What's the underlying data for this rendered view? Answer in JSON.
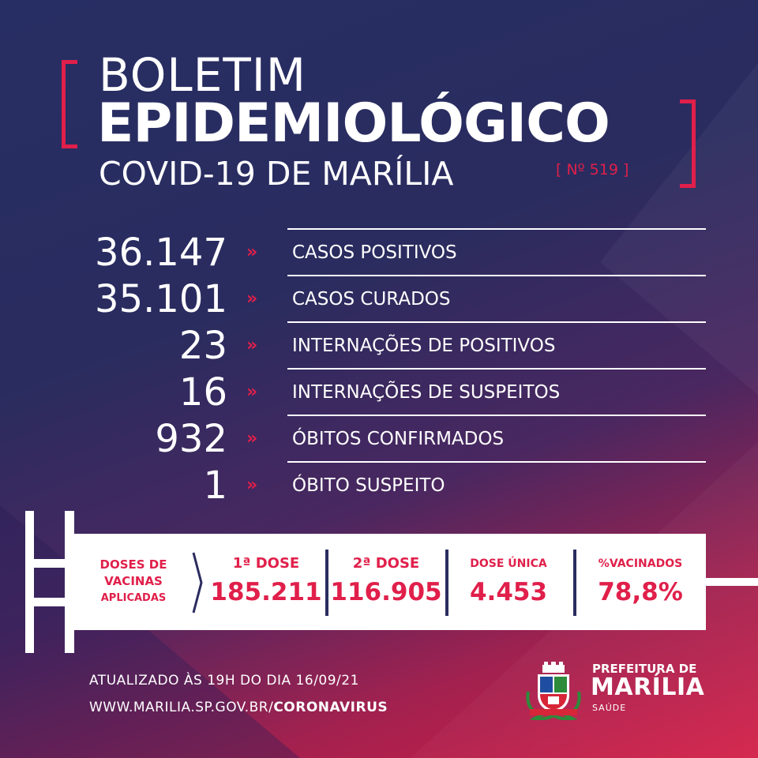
{
  "title": {
    "line1": "BOLETIM",
    "line2": "EPIDEMIOLÓGICO",
    "line3": "COVID-19 DE MARÍLIA",
    "number": "[ Nº 519 ]"
  },
  "stats": [
    {
      "value": "36.147",
      "label": "CASOS POSITIVOS"
    },
    {
      "value": "35.101",
      "label": "CASOS CURADOS"
    },
    {
      "value": "23",
      "label": "INTERNAÇÕES DE POSITIVOS"
    },
    {
      "value": "16",
      "label": "INTERNAÇÕES DE SUSPEITOS"
    },
    {
      "value": "932",
      "label": "ÓBITOS CONFIRMADOS"
    },
    {
      "value": "1",
      "label": "ÓBITO SUSPEITO"
    }
  ],
  "arrow_glyph": "»",
  "vaccines": {
    "heading_line1": "DOSES DE",
    "heading_line2": "VACINAS",
    "heading_line3": "APLICADAS",
    "first": {
      "label": "1ª DOSE",
      "value": "185.211"
    },
    "second": {
      "label": "2ª DOSE",
      "value": "116.905"
    },
    "single": {
      "label": "DOSE ÚNICA",
      "value": "4.453"
    },
    "percent": {
      "label": "%VACINADOS",
      "value": "78,8%"
    }
  },
  "footer": {
    "updated": "ATUALIZADO ÀS 19H DO DIA 16/09/21",
    "url_prefix": "WWW.MARILIA.SP.GOV.BR/",
    "url_bold": "CORONAVIRUS"
  },
  "brand": {
    "line1": "PREFEITURA DE",
    "line2": "MARÍLIA",
    "line3": "SAÚDE"
  },
  "colors": {
    "accent": "#e01f4a",
    "navy": "#2a2c5f",
    "white": "#ffffff"
  },
  "icons": [
    "double-chevron-icon",
    "syringe-icon",
    "coat-of-arms-icon"
  ]
}
